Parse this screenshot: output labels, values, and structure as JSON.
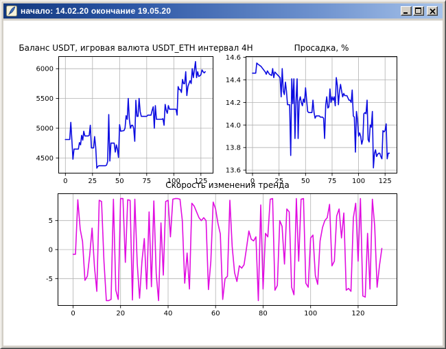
{
  "window": {
    "title": "начало: 14.02.20 окончание 19.05.20",
    "icon": "tk-feather-icon",
    "buttons": {
      "minimize": "_",
      "maximize": "□",
      "close": "✕"
    },
    "colors": {
      "titlebar_gradient_left": "#12387e",
      "titlebar_gradient_right": "#a7c3ea",
      "frame": "#d4d0c8",
      "client_background": "#ffffff",
      "title_text": "#ffffff"
    }
  },
  "chart_data": [
    {
      "type": "line",
      "title": "Баланс USDT, игровая валюта USDT_ETH интервал 4H",
      "xlabel": "",
      "ylabel": "",
      "xlim": [
        -6.5,
        136.5
      ],
      "ylim": [
        4240,
        6210
      ],
      "xticks": [
        "0",
        "25",
        "50",
        "75",
        "100",
        "125"
      ],
      "yticks": [
        "4500",
        "5000",
        "5500",
        "6000"
      ],
      "grid": true,
      "legend": "none",
      "series": [
        {
          "name": "balance_usdt",
          "color": "#0b0be0",
          "points": [
            [
              0,
              4810
            ],
            [
              4,
              4810
            ],
            [
              5,
              5100
            ],
            [
              6,
              4790
            ],
            [
              7,
              4480
            ],
            [
              8,
              4650
            ],
            [
              12,
              4650
            ],
            [
              13,
              4760
            ],
            [
              14,
              4720
            ],
            [
              15,
              4880
            ],
            [
              16,
              4800
            ],
            [
              17,
              4950
            ],
            [
              18,
              4870
            ],
            [
              21,
              4870
            ],
            [
              22,
              4880
            ],
            [
              23,
              5050
            ],
            [
              24,
              4670
            ],
            [
              26,
              4670
            ],
            [
              27,
              4860
            ],
            [
              28,
              4680
            ],
            [
              29,
              4330
            ],
            [
              30,
              4360
            ],
            [
              31,
              4370
            ],
            [
              37,
              4370
            ],
            [
              38,
              4380
            ],
            [
              39,
              4440
            ],
            [
              40,
              5230
            ],
            [
              41,
              4450
            ],
            [
              42,
              4750
            ],
            [
              45,
              4750
            ],
            [
              46,
              4600
            ],
            [
              47,
              4720
            ],
            [
              48,
              4650
            ],
            [
              49,
              4510
            ],
            [
              50,
              5060
            ],
            [
              51,
              4950
            ],
            [
              54,
              4960
            ],
            [
              55,
              5000
            ],
            [
              56,
              5210
            ],
            [
              57,
              5150
            ],
            [
              58,
              5500
            ],
            [
              59,
              5150
            ],
            [
              60,
              5000
            ],
            [
              61,
              5050
            ],
            [
              62,
              5050
            ],
            [
              63,
              5000
            ],
            [
              64,
              4780
            ],
            [
              65,
              5470
            ],
            [
              66,
              5200
            ],
            [
              67,
              5200
            ],
            [
              68,
              5500
            ],
            [
              69,
              5280
            ],
            [
              70,
              5200
            ],
            [
              75,
              5200
            ],
            [
              76,
              5220
            ],
            [
              79,
              5220
            ],
            [
              80,
              5300
            ],
            [
              81,
              5360
            ],
            [
              82,
              5000
            ],
            [
              83,
              5380
            ],
            [
              84,
              5150
            ],
            [
              89,
              5150
            ],
            [
              90,
              5160
            ],
            [
              91,
              5050
            ],
            [
              92,
              5400
            ],
            [
              93,
              5300
            ],
            [
              94,
              5250
            ],
            [
              95,
              5380
            ],
            [
              96,
              5320
            ],
            [
              102,
              5320
            ],
            [
              103,
              5220
            ],
            [
              104,
              5700
            ],
            [
              105,
              5650
            ],
            [
              106,
              5650
            ],
            [
              107,
              5600
            ],
            [
              108,
              5820
            ],
            [
              109,
              5750
            ],
            [
              110,
              5750
            ],
            [
              111,
              5950
            ],
            [
              112,
              5550
            ],
            [
              113,
              5700
            ],
            [
              114,
              5750
            ],
            [
              115,
              5800
            ],
            [
              116,
              5750
            ],
            [
              117,
              6000
            ],
            [
              118,
              5850
            ],
            [
              119,
              5980
            ],
            [
              120,
              6120
            ],
            [
              121,
              5850
            ],
            [
              122,
              5950
            ],
            [
              123,
              5870
            ],
            [
              124,
              5880
            ],
            [
              125,
              5900
            ],
            [
              126,
              5980
            ],
            [
              127,
              5950
            ],
            [
              128,
              5930
            ],
            [
              129,
              5950
            ]
          ]
        }
      ]
    },
    {
      "type": "line",
      "title": "Просадка, %",
      "xlabel": "",
      "ylabel": "",
      "xlim": [
        -6.5,
        136.5
      ],
      "ylim": [
        13.57,
        14.61
      ],
      "xticks": [
        "0",
        "25",
        "50",
        "75",
        "100",
        "125"
      ],
      "yticks": [
        "13.6",
        "13.8",
        "14.0",
        "14.2",
        "14.4",
        "14.6"
      ],
      "grid": true,
      "legend": "none",
      "series": [
        {
          "name": "drawdown_pct",
          "color": "#0b0be0",
          "points": [
            [
              0,
              14.46
            ],
            [
              3,
              14.46
            ],
            [
              4,
              14.55
            ],
            [
              5,
              14.54
            ],
            [
              8,
              14.52
            ],
            [
              12,
              14.47
            ],
            [
              13,
              14.45
            ],
            [
              14,
              14.48
            ],
            [
              16,
              14.45
            ],
            [
              18,
              14.44
            ],
            [
              19,
              14.5
            ],
            [
              20,
              14.42
            ],
            [
              21,
              14.47
            ],
            [
              23,
              14.45
            ],
            [
              25,
              14.43
            ],
            [
              26,
              14.42
            ],
            [
              27,
              14.25
            ],
            [
              28,
              14.5
            ],
            [
              29,
              14.3
            ],
            [
              30,
              14.27
            ],
            [
              31,
              14.38
            ],
            [
              32,
              14.3
            ],
            [
              33,
              14.18
            ],
            [
              35,
              14.18
            ],
            [
              36,
              13.73
            ],
            [
              37,
              14.41
            ],
            [
              38,
              14.19
            ],
            [
              39,
              14.41
            ],
            [
              40,
              13.88
            ],
            [
              41,
              14.21
            ],
            [
              42,
              14.41
            ],
            [
              43,
              13.88
            ],
            [
              44,
              14.21
            ],
            [
              45,
              14.25
            ],
            [
              46,
              14.2
            ],
            [
              47,
              14.17
            ],
            [
              48,
              14.23
            ],
            [
              49,
              14.2
            ],
            [
              50,
              14.33
            ],
            [
              51,
              14.22
            ],
            [
              52,
              14.12
            ],
            [
              53,
              14.11
            ],
            [
              56,
              14.11
            ],
            [
              57,
              14.22
            ],
            [
              58,
              14.11
            ],
            [
              59,
              14.06
            ],
            [
              60,
              14.08
            ],
            [
              63,
              14.08
            ],
            [
              64,
              14.07
            ],
            [
              66,
              14.07
            ],
            [
              67,
              14.06
            ],
            [
              68,
              13.88
            ],
            [
              69,
              14.18
            ],
            [
              70,
              14.25
            ],
            [
              71,
              14.15
            ],
            [
              72,
              14.16
            ],
            [
              73,
              14.32
            ],
            [
              74,
              14.2
            ],
            [
              75,
              14.25
            ],
            [
              76,
              14.22
            ],
            [
              77,
              14.25
            ],
            [
              78,
              14.17
            ],
            [
              79,
              14.42
            ],
            [
              80,
              14.35
            ],
            [
              81,
              14.18
            ],
            [
              82,
              14.3
            ],
            [
              83,
              14.36
            ],
            [
              84,
              14.3
            ],
            [
              85,
              14.25
            ],
            [
              86,
              14.28
            ],
            [
              87,
              14.26
            ],
            [
              89,
              14.26
            ],
            [
              90,
              14.24
            ],
            [
              91,
              14.22
            ],
            [
              92,
              14.22
            ],
            [
              93,
              14.2
            ],
            [
              94,
              14.31
            ],
            [
              95,
              14.08
            ],
            [
              96,
              14.07
            ],
            [
              97,
              13.76
            ],
            [
              98,
              14.12
            ],
            [
              99,
              14.05
            ],
            [
              100,
              13.9
            ],
            [
              101,
              13.93
            ],
            [
              102,
              13.9
            ],
            [
              103,
              13.83
            ],
            [
              104,
              13.87
            ],
            [
              105,
              14.1
            ],
            [
              106,
              14.11
            ],
            [
              107,
              14.1
            ],
            [
              108,
              14.22
            ],
            [
              109,
              13.87
            ],
            [
              110,
              13.85
            ],
            [
              111,
              14.0
            ],
            [
              112,
              13.98
            ],
            [
              113,
              14.12
            ],
            [
              114,
              13.62
            ],
            [
              115,
              13.75
            ],
            [
              116,
              13.78
            ],
            [
              117,
              13.72
            ],
            [
              118,
              13.74
            ],
            [
              119,
              13.75
            ],
            [
              120,
              13.75
            ],
            [
              121,
              13.72
            ],
            [
              122,
              13.7
            ],
            [
              123,
              13.95
            ],
            [
              124,
              13.94
            ],
            [
              125,
              13.95
            ],
            [
              126,
              14.01
            ],
            [
              127,
              13.7
            ],
            [
              128,
              13.75
            ],
            [
              129,
              13.75
            ]
          ]
        }
      ]
    },
    {
      "type": "line",
      "title": "Скорость изменения тренда",
      "xlabel": "",
      "ylabel": "",
      "xlim": [
        -6.5,
        136.5
      ],
      "ylim": [
        -9.7,
        9.7
      ],
      "xticks": [
        "0",
        "20",
        "40",
        "60",
        "80",
        "100",
        "120"
      ],
      "yticks": [
        "-5",
        "0",
        "5"
      ],
      "grid": true,
      "legend": "none",
      "series": [
        {
          "name": "trend_change_speed",
          "color": "#e00ce0",
          "values": [
            -0.8,
            -0.8,
            8.6,
            3.5,
            1.4,
            -5.3,
            -4.6,
            -1.0,
            3.7,
            -3.0,
            -7.2,
            8.5,
            8.3,
            -2.0,
            -8.8,
            -8.8,
            -8.6,
            8.7,
            -7.0,
            -8.6,
            8.8,
            8.8,
            -2.2,
            8.6,
            8.5,
            -8.7,
            8.7,
            -2.4,
            -8.4,
            -2.0,
            1.9,
            -6.8,
            6.5,
            -6.4,
            8.4,
            -4.2,
            -8.8,
            4.6,
            -4.4,
            8.3,
            8.5,
            2.2,
            8.7,
            8.8,
            8.8,
            8.7,
            5.0,
            -5.8,
            -0.6,
            -6.8,
            8.0,
            7.5,
            6.5,
            5.5,
            5.0,
            5.5,
            5.0,
            -6.9,
            -2.0,
            8.2,
            7.0,
            4.5,
            2.7,
            -8.6,
            -5.0,
            -4.6,
            8.5,
            0.5,
            -4.0,
            -5.5,
            -2.8,
            -3.2,
            -2.6,
            0.2,
            3.2,
            1.8,
            1.5,
            2.2,
            -8.8,
            7.7,
            -6.8,
            2.8,
            2.2,
            8.7,
            8.8,
            -7.0,
            -6.2,
            5.0,
            4.0,
            -2.5,
            7.0,
            6.5,
            -6.5,
            -7.8,
            8.8,
            -2.0,
            8.7,
            8.8,
            -5.8,
            -6.5,
            2.0,
            2.5,
            -4.5,
            -6.0,
            1.5,
            3.8,
            5.0,
            5.5,
            7.8,
            -2.8,
            -2.0,
            5.8,
            7.0,
            2.0,
            6.3,
            -7.0,
            -6.7,
            -7.2,
            5.5,
            8.0,
            -2.0,
            8.8,
            -8.0,
            -8.2,
            2.8,
            -6.8,
            8.7,
            4.0,
            -6.5,
            -2.8,
            0.2
          ]
        }
      ]
    }
  ]
}
